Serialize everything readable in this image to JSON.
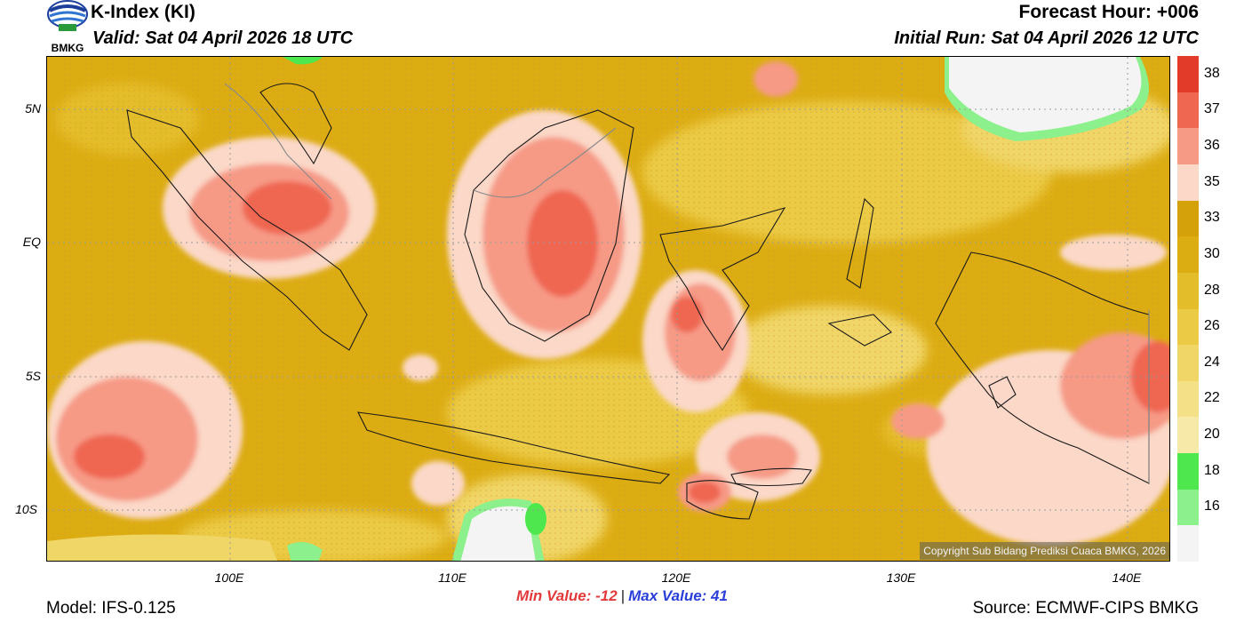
{
  "header": {
    "title": "K-Index (KI)",
    "valid": "Valid: Sat 04 April 2026 18 UTC",
    "forecast_hour": "Forecast Hour: +006",
    "initial_run": "Initial Run: Sat 04 April 2026 12 UTC",
    "logo_text": "BMKG"
  },
  "axes": {
    "lat_labels": [
      "5N",
      "EQ",
      "5S",
      "10S"
    ],
    "lon_labels": [
      "100E",
      "110E",
      "120E",
      "130E",
      "140E"
    ]
  },
  "legend": {
    "levels": [
      "38",
      "37",
      "36",
      "35",
      "33",
      "30",
      "28",
      "26",
      "24",
      "22",
      "20",
      "18",
      "16"
    ],
    "colors": [
      "#e23b2a",
      "#ef6651",
      "#f69a86",
      "#fbd8c8",
      "#d4a10a",
      "#dcad13",
      "#e4bd2a",
      "#ebca45",
      "#f0d667",
      "#f4e087",
      "#f7eaa8",
      "#4ee84e",
      "#8cf08c",
      "#f4f4f4"
    ]
  },
  "stats": {
    "min": "Min Value: -12",
    "separator": "|",
    "max": "Max Value:  41"
  },
  "footer": {
    "model": "Model: IFS-0.125",
    "source": "Source: ECMWF-CIPS BMKG",
    "copyright": "Copyright Sub Bidang Prediksi Cuaca BMKG, 2026"
  }
}
